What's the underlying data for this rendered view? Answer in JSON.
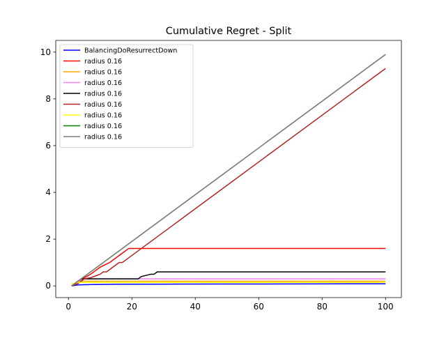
{
  "chart_data": {
    "type": "line",
    "title": "Cumulative Regret - Split",
    "xlabel": "",
    "ylabel": "",
    "xlim": [
      -4,
      105
    ],
    "ylim": [
      -0.5,
      10.5
    ],
    "xticks": [
      0,
      20,
      40,
      60,
      80,
      100
    ],
    "yticks": [
      0,
      2,
      4,
      6,
      8,
      10
    ],
    "grid": false,
    "legend_position": "top-left",
    "series": [
      {
        "name": "BalancingDoResurrectDown",
        "color": "#0000ff",
        "x": [
          1,
          2,
          3,
          5,
          8,
          15,
          30,
          50,
          75,
          100
        ],
        "y": [
          0.0,
          0.02,
          0.04,
          0.05,
          0.06,
          0.07,
          0.075,
          0.08,
          0.085,
          0.09
        ]
      },
      {
        "name": "radius 0.16",
        "color": "#ff0000",
        "x": [
          1,
          3,
          7,
          10,
          13,
          16,
          19,
          100
        ],
        "y": [
          0.0,
          0.2,
          0.5,
          0.8,
          1.0,
          1.3,
          1.6,
          1.6
        ]
      },
      {
        "name": "radius 0.16",
        "color": "#ffa500",
        "x": [
          1,
          2,
          3,
          4,
          100
        ],
        "y": [
          0.0,
          0.1,
          0.15,
          0.2,
          0.2
        ]
      },
      {
        "name": "radius 0.16",
        "color": "#ee82ee",
        "x": [
          1,
          2,
          3,
          4,
          5,
          100
        ],
        "y": [
          0.0,
          0.1,
          0.2,
          0.25,
          0.3,
          0.3
        ]
      },
      {
        "name": "radius 0.16",
        "color": "#000000",
        "x": [
          1,
          2,
          3,
          4,
          22,
          23,
          26,
          27,
          28,
          100
        ],
        "y": [
          0.0,
          0.1,
          0.2,
          0.3,
          0.3,
          0.4,
          0.5,
          0.5,
          0.6,
          0.6
        ]
      },
      {
        "name": "radius 0.16",
        "color": "#b22222",
        "x": [
          1,
          3,
          5,
          7,
          9,
          10,
          11,
          12,
          13,
          14,
          15,
          16,
          17,
          18,
          100
        ],
        "y": [
          0.0,
          0.1,
          0.3,
          0.35,
          0.45,
          0.5,
          0.6,
          0.6,
          0.7,
          0.8,
          0.9,
          1.0,
          1.0,
          1.1,
          9.3
        ]
      },
      {
        "name": "radius 0.16",
        "color": "#ffff00",
        "x": [
          1,
          2,
          3,
          100
        ],
        "y": [
          0.1,
          0.12,
          0.15,
          0.15
        ]
      },
      {
        "name": "radius 0.16",
        "color": "#008000",
        "x": [
          1,
          100
        ],
        "y": [
          0.0,
          9.9
        ]
      },
      {
        "name": "radius 0.16",
        "color": "#808080",
        "x": [
          1,
          100
        ],
        "y": [
          0.0,
          9.9
        ]
      }
    ]
  }
}
